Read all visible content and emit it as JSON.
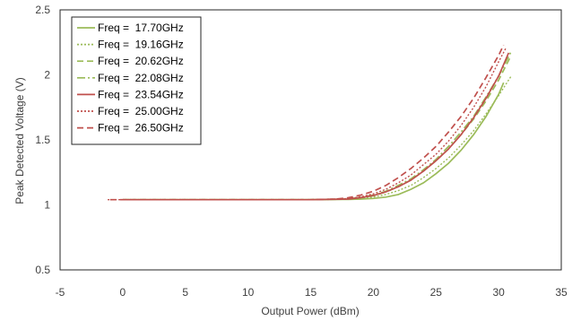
{
  "chart_data": {
    "type": "line",
    "title": "",
    "xlabel": "Output Power (dBm)",
    "ylabel": "Peak Detected Voltage (V)",
    "xlim": [
      -5,
      35
    ],
    "ylim": [
      0.5,
      2.5
    ],
    "xticks": [
      "-5",
      "0",
      "5",
      "10",
      "15",
      "20",
      "25",
      "30",
      "35"
    ],
    "yticks": [
      "0.5",
      "1",
      "1.5",
      "2",
      "2.5"
    ],
    "grid": false,
    "legend_position": "top-left",
    "series": [
      {
        "name": "Freq =  17.70GHz",
        "color": "#9bbb59",
        "dash": "solid",
        "points": [
          [
            0.2,
            1.04
          ],
          [
            5,
            1.04
          ],
          [
            10,
            1.04
          ],
          [
            15,
            1.04
          ],
          [
            18,
            1.042
          ],
          [
            19,
            1.045
          ],
          [
            20,
            1.05
          ],
          [
            21,
            1.06
          ],
          [
            22,
            1.08
          ],
          [
            23,
            1.12
          ],
          [
            24,
            1.17
          ],
          [
            25,
            1.24
          ],
          [
            26,
            1.32
          ],
          [
            27,
            1.42
          ],
          [
            28,
            1.54
          ],
          [
            29,
            1.68
          ],
          [
            30,
            1.85
          ],
          [
            30.4,
            1.94
          ]
        ]
      },
      {
        "name": "Freq =  19.16GHz",
        "color": "#9bbb59",
        "dash": "dot",
        "points": [
          [
            0,
            1.04
          ],
          [
            5,
            1.04
          ],
          [
            10,
            1.04
          ],
          [
            15,
            1.04
          ],
          [
            18,
            1.044
          ],
          [
            19,
            1.05
          ],
          [
            20,
            1.06
          ],
          [
            21,
            1.08
          ],
          [
            22,
            1.11
          ],
          [
            23,
            1.15
          ],
          [
            24,
            1.21
          ],
          [
            25,
            1.28
          ],
          [
            26,
            1.36
          ],
          [
            27,
            1.46
          ],
          [
            28,
            1.57
          ],
          [
            29,
            1.7
          ],
          [
            30,
            1.84
          ],
          [
            31,
            1.99
          ]
        ]
      },
      {
        "name": "Freq =  20.62GHz",
        "color": "#9bbb59",
        "dash": "dash",
        "points": [
          [
            0,
            1.04
          ],
          [
            5,
            1.04
          ],
          [
            10,
            1.04
          ],
          [
            15,
            1.04
          ],
          [
            18,
            1.045
          ],
          [
            19,
            1.055
          ],
          [
            20,
            1.07
          ],
          [
            21,
            1.1
          ],
          [
            22,
            1.14
          ],
          [
            23,
            1.19
          ],
          [
            24,
            1.26
          ],
          [
            25,
            1.34
          ],
          [
            26,
            1.43
          ],
          [
            27,
            1.54
          ],
          [
            28,
            1.66
          ],
          [
            29,
            1.8
          ],
          [
            30,
            1.96
          ],
          [
            31,
            2.15
          ]
        ]
      },
      {
        "name": "Freq =  22.08GHz",
        "color": "#9bbb59",
        "dash": "dashdot",
        "points": [
          [
            0,
            1.04
          ],
          [
            5,
            1.04
          ],
          [
            10,
            1.04
          ],
          [
            15,
            1.04
          ],
          [
            18,
            1.046
          ],
          [
            19,
            1.058
          ],
          [
            20,
            1.075
          ],
          [
            21,
            1.105
          ],
          [
            22,
            1.15
          ],
          [
            23,
            1.2
          ],
          [
            24,
            1.27
          ],
          [
            25,
            1.35
          ],
          [
            26,
            1.45
          ],
          [
            27,
            1.56
          ],
          [
            28,
            1.68
          ],
          [
            29,
            1.83
          ],
          [
            30,
            1.99
          ],
          [
            31,
            2.18
          ]
        ]
      },
      {
        "name": "Freq =  23.54GHz",
        "color": "#c0504d",
        "dash": "solid",
        "points": [
          [
            0,
            1.04
          ],
          [
            5,
            1.04
          ],
          [
            10,
            1.04
          ],
          [
            15,
            1.04
          ],
          [
            18,
            1.045
          ],
          [
            19,
            1.056
          ],
          [
            20,
            1.072
          ],
          [
            21,
            1.1
          ],
          [
            22,
            1.14
          ],
          [
            23,
            1.19
          ],
          [
            24,
            1.26
          ],
          [
            25,
            1.34
          ],
          [
            26,
            1.43
          ],
          [
            27,
            1.54
          ],
          [
            28,
            1.67
          ],
          [
            29,
            1.82
          ],
          [
            30,
            1.99
          ],
          [
            30.8,
            2.17
          ]
        ]
      },
      {
        "name": "Freq =  25.00GHz",
        "color": "#c0504d",
        "dash": "dot",
        "points": [
          [
            -1.2,
            1.04
          ],
          [
            0,
            1.04
          ],
          [
            5,
            1.04
          ],
          [
            10,
            1.04
          ],
          [
            15,
            1.04
          ],
          [
            18,
            1.048
          ],
          [
            19,
            1.062
          ],
          [
            20,
            1.085
          ],
          [
            21,
            1.12
          ],
          [
            22,
            1.17
          ],
          [
            23,
            1.23
          ],
          [
            24,
            1.31
          ],
          [
            25,
            1.39
          ],
          [
            26,
            1.49
          ],
          [
            27,
            1.61
          ],
          [
            28,
            1.75
          ],
          [
            29,
            1.91
          ],
          [
            30,
            2.1
          ],
          [
            30.6,
            2.21
          ]
        ]
      },
      {
        "name": "Freq =  26.50GHz",
        "color": "#c0504d",
        "dash": "dash",
        "points": [
          [
            -1,
            1.04
          ],
          [
            0,
            1.04
          ],
          [
            5,
            1.04
          ],
          [
            10,
            1.04
          ],
          [
            15,
            1.04
          ],
          [
            17,
            1.045
          ],
          [
            18,
            1.055
          ],
          [
            19,
            1.075
          ],
          [
            20,
            1.105
          ],
          [
            21,
            1.15
          ],
          [
            22,
            1.21
          ],
          [
            23,
            1.28
          ],
          [
            24,
            1.36
          ],
          [
            25,
            1.45
          ],
          [
            26,
            1.56
          ],
          [
            27,
            1.68
          ],
          [
            28,
            1.82
          ],
          [
            29,
            1.98
          ],
          [
            30,
            2.15
          ],
          [
            30.4,
            2.23
          ]
        ]
      }
    ]
  }
}
